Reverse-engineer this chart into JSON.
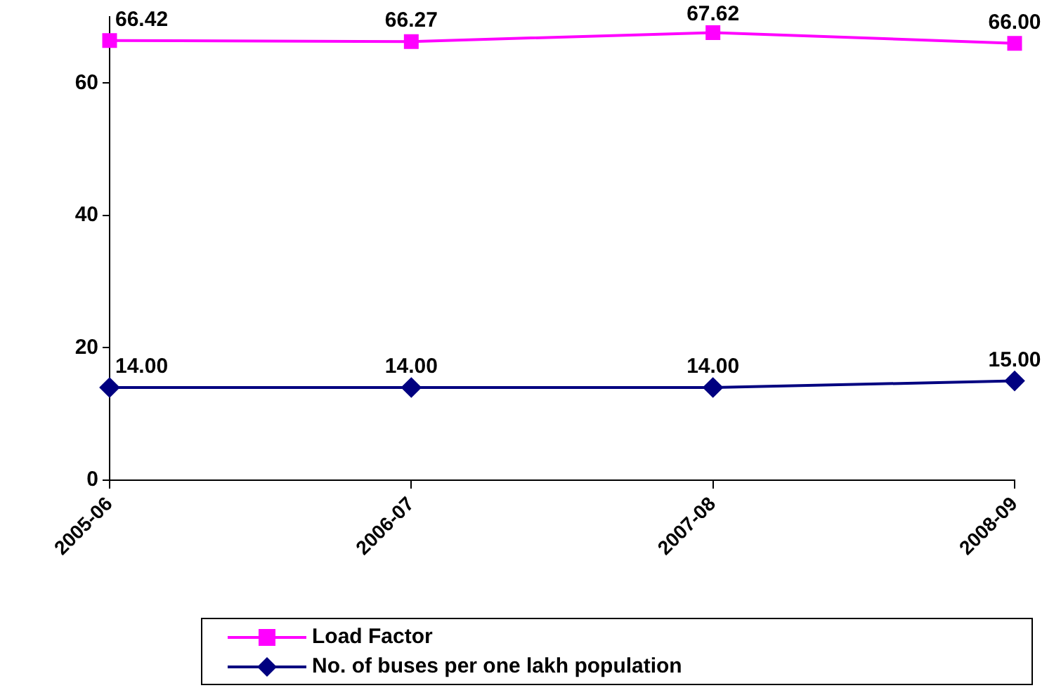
{
  "chart_data": {
    "type": "line",
    "categories": [
      "2005-06",
      "2006-07",
      "2007-08",
      "2008-09"
    ],
    "series": [
      {
        "name": "Load Factor",
        "color": "#ff00ff",
        "marker": "square",
        "values": [
          66.42,
          66.27,
          67.62,
          66.0
        ],
        "value_labels": [
          "66.42",
          "66.27",
          "67.62",
          "66.00"
        ]
      },
      {
        "name": "No. of buses per one lakh population",
        "color": "#000080",
        "marker": "diamond",
        "values": [
          14.0,
          14.0,
          14.0,
          15.0
        ],
        "value_labels": [
          "14.00",
          "14.00",
          "14.00",
          "15.00"
        ]
      }
    ],
    "ylim": [
      0,
      70
    ],
    "yticks": [
      0,
      20,
      40,
      60
    ],
    "grid": false,
    "legend": "bottom",
    "line_style": "solid"
  }
}
